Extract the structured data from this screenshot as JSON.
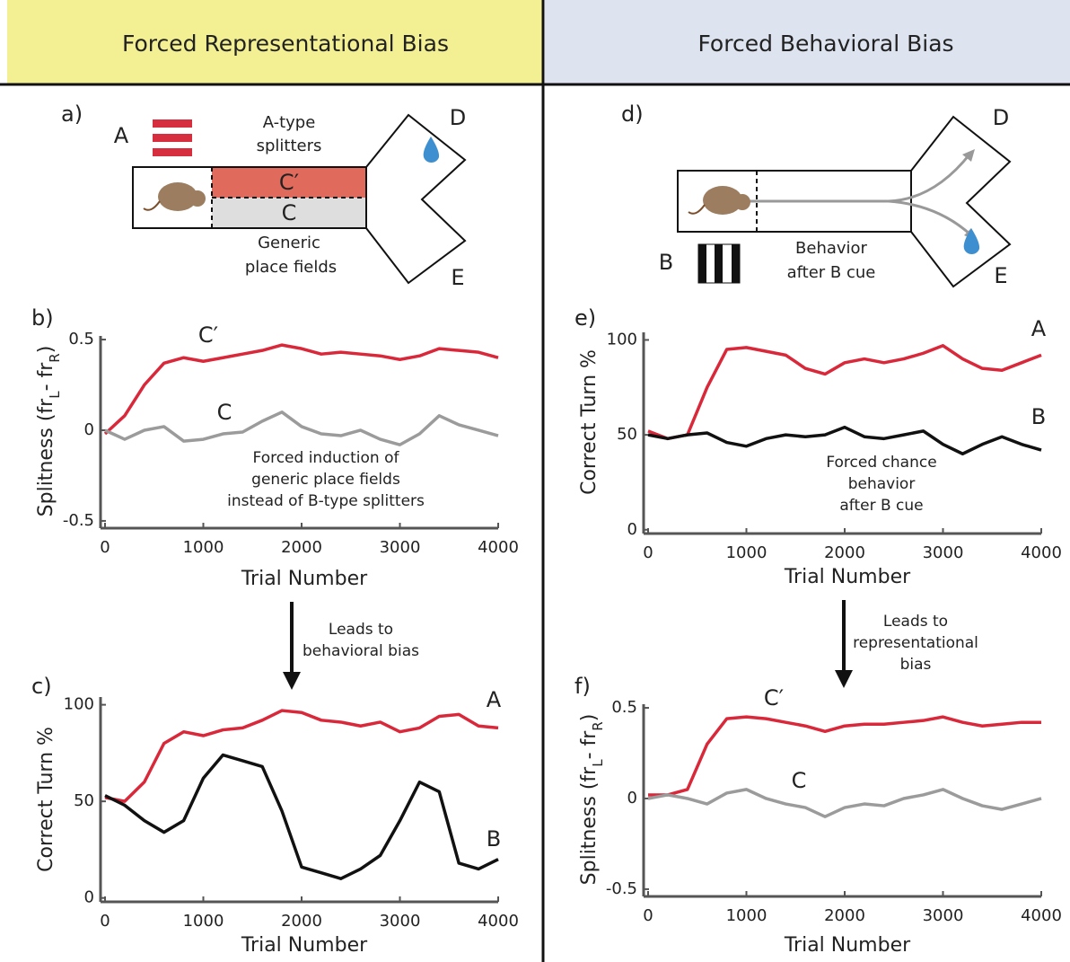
{
  "headers": [
    "Forced Representational Bias",
    "Forced Behavioral Bias"
  ],
  "diagram_a": {
    "panel": "a)",
    "cue": "A",
    "top_label": [
      "A-type",
      "splitters"
    ],
    "arm_top": "C′",
    "arm_bottom": "C",
    "bottom_label": [
      "Generic",
      "place fields"
    ],
    "end_top": "D",
    "end_bottom": "E"
  },
  "diagram_d": {
    "panel": "d)",
    "cue": "B",
    "label": [
      "Behavior",
      "after B cue"
    ],
    "end_top": "D",
    "end_bottom": "E"
  },
  "notes": [
    {
      "lines": [
        "Leads to",
        "behavioral bias"
      ]
    },
    {
      "lines": [
        "Leads to",
        "representational",
        "bias"
      ]
    }
  ],
  "chart_data": [
    {
      "type": "line",
      "panel": "b)",
      "ylabel": [
        "Splitness (fr",
        "L",
        "- fr",
        "R",
        ")"
      ],
      "xlabel": "Trial Number",
      "x": [
        0,
        200,
        400,
        600,
        800,
        1000,
        1200,
        1400,
        1600,
        1800,
        2000,
        2200,
        2400,
        2600,
        2800,
        3000,
        3200,
        3400,
        3600,
        3800,
        4000
      ],
      "xlim": [
        0,
        4000
      ],
      "xticks": [
        0,
        1000,
        2000,
        3000,
        4000
      ],
      "ylim": [
        -0.54,
        0.52
      ],
      "yticks": [
        -0.5,
        0,
        0.5
      ],
      "series": [
        {
          "name": "C′",
          "color": "#d9283a",
          "values": [
            -0.02,
            0.08,
            0.25,
            0.37,
            0.4,
            0.38,
            0.4,
            0.42,
            0.44,
            0.47,
            0.45,
            0.42,
            0.43,
            0.42,
            0.41,
            0.39,
            0.41,
            0.45,
            0.44,
            0.43,
            0.4
          ]
        },
        {
          "name": "C",
          "color": "#9b9b9b",
          "values": [
            0.0,
            -0.05,
            0.0,
            0.02,
            -0.06,
            -0.05,
            -0.02,
            -0.01,
            0.05,
            0.1,
            0.02,
            -0.02,
            -0.03,
            0.0,
            -0.05,
            -0.08,
            -0.02,
            0.08,
            0.03,
            0.0,
            -0.03
          ]
        }
      ],
      "annotation": [
        "Forced induction of",
        "generic place fields",
        "instead of B-type splitters"
      ]
    },
    {
      "type": "line",
      "panel": "c)",
      "ylabel": [
        "Correct Turn %"
      ],
      "xlabel": "Trial Number",
      "x": [
        0,
        200,
        400,
        600,
        800,
        1000,
        1200,
        1400,
        1600,
        1800,
        2000,
        2200,
        2400,
        2600,
        2800,
        3000,
        3200,
        3400,
        3600,
        3800,
        4000
      ],
      "xlim": [
        0,
        4000
      ],
      "xticks": [
        0,
        1000,
        2000,
        3000,
        4000
      ],
      "ylim": [
        -2,
        104
      ],
      "yticks": [
        0,
        50,
        100
      ],
      "series": [
        {
          "name": "A",
          "color": "#d9283a",
          "values": [
            52,
            50,
            60,
            80,
            86,
            84,
            87,
            88,
            92,
            97,
            96,
            92,
            91,
            89,
            91,
            86,
            88,
            94,
            95,
            89,
            88
          ]
        },
        {
          "name": "B",
          "color": "#111111",
          "values": [
            53,
            48,
            40,
            34,
            40,
            62,
            74,
            71,
            68,
            45,
            16,
            13,
            10,
            15,
            22,
            40,
            60,
            55,
            18,
            15,
            20
          ]
        }
      ],
      "annotation": []
    },
    {
      "type": "line",
      "panel": "e)",
      "ylabel": [
        "Correct Turn %"
      ],
      "xlabel": "Trial Number",
      "x": [
        0,
        200,
        400,
        600,
        800,
        1000,
        1200,
        1400,
        1600,
        1800,
        2000,
        2200,
        2400,
        2600,
        2800,
        3000,
        3200,
        3400,
        3600,
        3800,
        4000
      ],
      "xlim": [
        0,
        4000
      ],
      "xticks": [
        0,
        1000,
        2000,
        3000,
        4000
      ],
      "ylim": [
        -2,
        104
      ],
      "yticks": [
        0,
        50,
        100
      ],
      "series": [
        {
          "name": "A",
          "color": "#d9283a",
          "values": [
            52,
            48,
            50,
            75,
            95,
            96,
            94,
            92,
            85,
            82,
            88,
            90,
            88,
            90,
            93,
            97,
            90,
            85,
            84,
            88,
            92
          ]
        },
        {
          "name": "B",
          "color": "#111111",
          "values": [
            50,
            48,
            50,
            51,
            46,
            44,
            48,
            50,
            49,
            50,
            54,
            49,
            48,
            50,
            52,
            45,
            40,
            45,
            49,
            45,
            42
          ]
        }
      ],
      "annotation": [
        "Forced chance",
        "behavior",
        "after B cue"
      ]
    },
    {
      "type": "line",
      "panel": "f)",
      "ylabel": [
        "Splitness (fr",
        "L",
        "- fr",
        "R",
        ")"
      ],
      "xlabel": "Trial Number",
      "x": [
        0,
        200,
        400,
        600,
        800,
        1000,
        1200,
        1400,
        1600,
        1800,
        2000,
        2200,
        2400,
        2600,
        2800,
        3000,
        3200,
        3400,
        3600,
        3800,
        4000
      ],
      "xlim": [
        0,
        4000
      ],
      "xticks": [
        0,
        1000,
        2000,
        3000,
        4000
      ],
      "ylim": [
        -0.54,
        0.52
      ],
      "yticks": [
        -0.5,
        0,
        0.5
      ],
      "series": [
        {
          "name": "C′",
          "color": "#d9283a",
          "values": [
            0.02,
            0.02,
            0.05,
            0.3,
            0.44,
            0.45,
            0.44,
            0.42,
            0.4,
            0.37,
            0.4,
            0.41,
            0.41,
            0.42,
            0.43,
            0.45,
            0.42,
            0.4,
            0.41,
            0.42,
            0.42
          ]
        },
        {
          "name": "C",
          "color": "#9b9b9b",
          "values": [
            0.0,
            0.02,
            0.0,
            -0.03,
            0.03,
            0.05,
            0.0,
            -0.03,
            -0.05,
            -0.1,
            -0.05,
            -0.03,
            -0.04,
            0.0,
            0.02,
            0.05,
            0.0,
            -0.04,
            -0.06,
            -0.03,
            0.0
          ]
        }
      ],
      "annotation": []
    }
  ]
}
